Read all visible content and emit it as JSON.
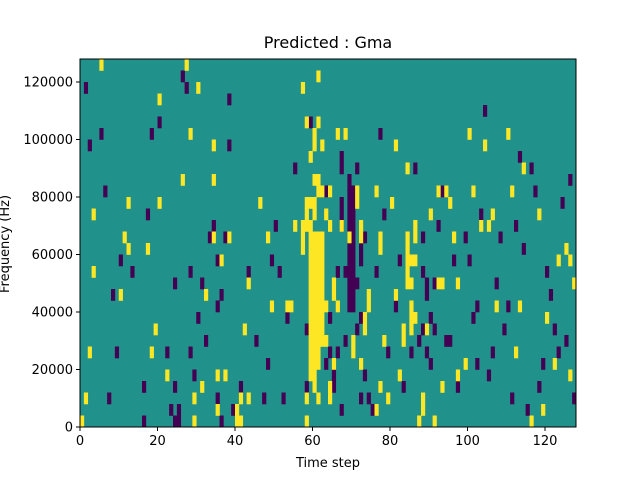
{
  "chart_data": {
    "type": "heatmap",
    "title": "Predicted : Gma",
    "xlabel": "Time step",
    "ylabel": "Frequency (Hz)",
    "xlim": [
      0,
      128
    ],
    "ylim": [
      0,
      128000
    ],
    "xticks": [
      0,
      20,
      40,
      60,
      80,
      100,
      120
    ],
    "xtick_labels": [
      "0",
      "20",
      "40",
      "60",
      "80",
      "100",
      "120"
    ],
    "yticks": [
      0,
      20000,
      40000,
      60000,
      80000,
      100000,
      120000
    ],
    "ytick_labels": [
      "0",
      "20000",
      "40000",
      "60000",
      "80000",
      "100000",
      "120000"
    ],
    "grid": false,
    "legend": false,
    "colormap": "viridis",
    "background_value": 0.5,
    "level_colors": {
      "0": "#440154",
      "0.5": "#21918c",
      "1": "#fde725"
    },
    "cell_size": {
      "time": 1,
      "frequency_hz": 4000
    },
    "cells_high": [
      [
        0,
        0
      ],
      [
        1,
        2
      ],
      [
        2,
        6
      ],
      [
        3,
        13
      ],
      [
        3,
        18
      ],
      [
        5,
        31
      ],
      [
        10,
        11
      ],
      [
        11,
        16
      ],
      [
        12,
        19
      ],
      [
        12,
        15
      ],
      [
        17,
        15
      ],
      [
        18,
        6
      ],
      [
        19,
        8
      ],
      [
        20,
        19
      ],
      [
        20,
        28
      ],
      [
        22,
        4
      ],
      [
        26,
        21
      ],
      [
        27,
        31
      ],
      [
        28,
        25
      ],
      [
        29,
        0
      ],
      [
        29,
        2
      ],
      [
        30,
        29
      ],
      [
        31,
        3
      ],
      [
        32,
        11
      ],
      [
        34,
        24
      ],
      [
        34,
        21
      ],
      [
        34,
        16
      ],
      [
        35,
        4
      ],
      [
        35,
        1
      ],
      [
        36,
        14
      ],
      [
        37,
        4
      ],
      [
        38,
        16
      ],
      [
        40,
        0
      ],
      [
        40,
        1
      ],
      [
        41,
        0
      ],
      [
        41,
        2
      ],
      [
        42,
        8
      ],
      [
        43,
        2
      ],
      [
        43,
        12
      ],
      [
        46,
        19
      ],
      [
        48,
        16
      ],
      [
        49,
        10
      ],
      [
        53,
        10
      ],
      [
        54,
        10
      ],
      [
        55,
        17
      ],
      [
        57,
        15
      ],
      [
        57,
        16
      ],
      [
        57,
        17
      ],
      [
        57,
        29
      ],
      [
        58,
        0
      ],
      [
        58,
        2
      ],
      [
        58,
        17
      ],
      [
        58,
        18
      ],
      [
        58,
        19
      ],
      [
        58,
        26
      ],
      [
        59,
        4
      ],
      [
        59,
        5
      ],
      [
        59,
        6
      ],
      [
        59,
        7
      ],
      [
        59,
        8
      ],
      [
        59,
        9
      ],
      [
        59,
        10
      ],
      [
        59,
        11
      ],
      [
        59,
        12
      ],
      [
        59,
        13
      ],
      [
        59,
        14
      ],
      [
        59,
        15
      ],
      [
        59,
        16
      ],
      [
        59,
        17
      ],
      [
        59,
        19
      ],
      [
        59,
        23
      ],
      [
        60,
        3
      ],
      [
        60,
        4
      ],
      [
        60,
        5
      ],
      [
        60,
        6
      ],
      [
        60,
        7
      ],
      [
        60,
        8
      ],
      [
        60,
        9
      ],
      [
        60,
        10
      ],
      [
        60,
        11
      ],
      [
        60,
        12
      ],
      [
        60,
        13
      ],
      [
        60,
        14
      ],
      [
        60,
        15
      ],
      [
        60,
        16
      ],
      [
        60,
        18
      ],
      [
        60,
        19
      ],
      [
        60,
        21
      ],
      [
        60,
        24
      ],
      [
        60,
        25
      ],
      [
        61,
        2
      ],
      [
        61,
        5
      ],
      [
        61,
        6
      ],
      [
        61,
        7
      ],
      [
        61,
        8
      ],
      [
        61,
        9
      ],
      [
        61,
        10
      ],
      [
        61,
        11
      ],
      [
        61,
        12
      ],
      [
        61,
        13
      ],
      [
        61,
        14
      ],
      [
        61,
        15
      ],
      [
        61,
        16
      ],
      [
        61,
        20
      ],
      [
        61,
        21
      ],
      [
        61,
        26
      ],
      [
        61,
        30
      ],
      [
        62,
        7
      ],
      [
        62,
        8
      ],
      [
        62,
        9
      ],
      [
        62,
        10
      ],
      [
        62,
        11
      ],
      [
        62,
        12
      ],
      [
        62,
        13
      ],
      [
        62,
        14
      ],
      [
        62,
        15
      ],
      [
        62,
        16
      ],
      [
        62,
        20
      ],
      [
        62,
        24
      ],
      [
        63,
        7
      ],
      [
        63,
        10
      ],
      [
        63,
        18
      ],
      [
        64,
        2
      ],
      [
        64,
        3
      ],
      [
        64,
        17
      ],
      [
        64,
        20
      ],
      [
        65,
        5
      ],
      [
        65,
        11
      ],
      [
        65,
        12
      ],
      [
        66,
        10
      ],
      [
        66,
        25
      ],
      [
        67,
        17
      ],
      [
        68,
        25
      ],
      [
        69,
        16
      ],
      [
        70,
        6
      ],
      [
        70,
        7
      ],
      [
        71,
        19
      ],
      [
        71,
        20
      ],
      [
        72,
        17
      ],
      [
        72,
        16
      ],
      [
        72,
        5
      ],
      [
        73,
        8
      ],
      [
        73,
        9
      ],
      [
        74,
        10
      ],
      [
        74,
        11
      ],
      [
        76,
        1
      ],
      [
        76,
        20
      ],
      [
        77,
        3
      ],
      [
        77,
        15
      ],
      [
        77,
        16
      ],
      [
        78,
        7
      ],
      [
        79,
        2
      ],
      [
        80,
        19
      ],
      [
        81,
        11
      ],
      [
        81,
        24
      ],
      [
        82,
        4
      ],
      [
        83,
        7
      ],
      [
        83,
        8
      ],
      [
        84,
        12
      ],
      [
        84,
        13
      ],
      [
        84,
        14
      ],
      [
        84,
        15
      ],
      [
        84,
        16
      ],
      [
        84,
        22
      ],
      [
        85,
        8
      ],
      [
        85,
        9
      ],
      [
        85,
        10
      ],
      [
        85,
        12
      ],
      [
        85,
        14
      ],
      [
        86,
        16
      ],
      [
        86,
        17
      ],
      [
        86,
        9
      ],
      [
        86,
        14
      ],
      [
        87,
        0
      ],
      [
        88,
        1
      ],
      [
        88,
        2
      ],
      [
        89,
        8
      ],
      [
        90,
        18
      ],
      [
        91,
        0
      ],
      [
        92,
        12
      ],
      [
        92,
        20
      ],
      [
        93,
        3
      ],
      [
        93,
        12
      ],
      [
        94,
        20
      ],
      [
        95,
        19
      ],
      [
        96,
        16
      ],
      [
        97,
        4
      ],
      [
        97,
        12
      ],
      [
        99,
        5
      ],
      [
        100,
        25
      ],
      [
        101,
        20
      ],
      [
        103,
        17
      ],
      [
        104,
        24
      ],
      [
        105,
        17
      ],
      [
        106,
        18
      ],
      [
        107,
        10
      ],
      [
        110,
        25
      ],
      [
        111,
        20
      ],
      [
        112,
        6
      ],
      [
        113,
        10
      ],
      [
        114,
        22
      ],
      [
        116,
        0
      ],
      [
        118,
        18
      ],
      [
        119,
        1
      ],
      [
        120,
        9
      ],
      [
        122,
        5
      ],
      [
        123,
        14
      ],
      [
        125,
        15
      ],
      [
        126,
        14
      ],
      [
        126,
        4
      ],
      [
        127,
        12
      ]
    ],
    "cells_low": [
      [
        1,
        29
      ],
      [
        2,
        24
      ],
      [
        5,
        25
      ],
      [
        6,
        20
      ],
      [
        7,
        2
      ],
      [
        8,
        11
      ],
      [
        9,
        6
      ],
      [
        10,
        14
      ],
      [
        13,
        13
      ],
      [
        16,
        3
      ],
      [
        16,
        0
      ],
      [
        17,
        18
      ],
      [
        18,
        25
      ],
      [
        20,
        26
      ],
      [
        22,
        6
      ],
      [
        23,
        1
      ],
      [
        24,
        0
      ],
      [
        24,
        3
      ],
      [
        24,
        12
      ],
      [
        25,
        0
      ],
      [
        25,
        1
      ],
      [
        26,
        30
      ],
      [
        27,
        29
      ],
      [
        28,
        6
      ],
      [
        28,
        13
      ],
      [
        29,
        4
      ],
      [
        30,
        9
      ],
      [
        31,
        12
      ],
      [
        32,
        7
      ],
      [
        33,
        16
      ],
      [
        34,
        17
      ],
      [
        35,
        14
      ],
      [
        35,
        10
      ],
      [
        35,
        2
      ],
      [
        36,
        11
      ],
      [
        36,
        0
      ],
      [
        37,
        16
      ],
      [
        38,
        24
      ],
      [
        38,
        28
      ],
      [
        39,
        1
      ],
      [
        41,
        3
      ],
      [
        43,
        13
      ],
      [
        45,
        7
      ],
      [
        47,
        2
      ],
      [
        48,
        5
      ],
      [
        49,
        14
      ],
      [
        50,
        17
      ],
      [
        51,
        13
      ],
      [
        52,
        2
      ],
      [
        53,
        9
      ],
      [
        55,
        22
      ],
      [
        58,
        8
      ],
      [
        58,
        3
      ],
      [
        59,
        26
      ],
      [
        63,
        20
      ],
      [
        63,
        5
      ],
      [
        64,
        6
      ],
      [
        64,
        9
      ],
      [
        65,
        3
      ],
      [
        65,
        4
      ],
      [
        66,
        6
      ],
      [
        66,
        13
      ],
      [
        67,
        1
      ],
      [
        67,
        17
      ],
      [
        67,
        18
      ],
      [
        67,
        19
      ],
      [
        67,
        22
      ],
      [
        67,
        23
      ],
      [
        68,
        13
      ],
      [
        68,
        7
      ],
      [
        69,
        10
      ],
      [
        69,
        11
      ],
      [
        69,
        12
      ],
      [
        69,
        13
      ],
      [
        69,
        14
      ],
      [
        69,
        15
      ],
      [
        69,
        16
      ],
      [
        69,
        17
      ],
      [
        69,
        18
      ],
      [
        69,
        19
      ],
      [
        69,
        20
      ],
      [
        69,
        21
      ],
      [
        70,
        10
      ],
      [
        70,
        11
      ],
      [
        70,
        12
      ],
      [
        70,
        13
      ],
      [
        70,
        14
      ],
      [
        70,
        15
      ],
      [
        70,
        16
      ],
      [
        70,
        17
      ],
      [
        70,
        18
      ],
      [
        70,
        19
      ],
      [
        70,
        20
      ],
      [
        71,
        8
      ],
      [
        71,
        12
      ],
      [
        71,
        22
      ],
      [
        72,
        2
      ],
      [
        72,
        14
      ],
      [
        72,
        15
      ],
      [
        72,
        9
      ],
      [
        73,
        4
      ],
      [
        73,
        16
      ],
      [
        74,
        2
      ],
      [
        75,
        1
      ],
      [
        76,
        13
      ],
      [
        77,
        25
      ],
      [
        78,
        18
      ],
      [
        79,
        6
      ],
      [
        81,
        10
      ],
      [
        82,
        14
      ],
      [
        83,
        3
      ],
      [
        85,
        6
      ],
      [
        86,
        22
      ],
      [
        87,
        7
      ],
      [
        88,
        8
      ],
      [
        88,
        13
      ],
      [
        88,
        16
      ],
      [
        89,
        6
      ],
      [
        89,
        11
      ],
      [
        89,
        12
      ],
      [
        90,
        5
      ],
      [
        90,
        9
      ],
      [
        91,
        8
      ],
      [
        91,
        12
      ],
      [
        92,
        17
      ],
      [
        93,
        20
      ],
      [
        94,
        7
      ],
      [
        95,
        7
      ],
      [
        96,
        14
      ],
      [
        97,
        3
      ],
      [
        99,
        16
      ],
      [
        100,
        14
      ],
      [
        101,
        9
      ],
      [
        102,
        5
      ],
      [
        102,
        10
      ],
      [
        103,
        18
      ],
      [
        104,
        27
      ],
      [
        105,
        4
      ],
      [
        106,
        6
      ],
      [
        107,
        12
      ],
      [
        108,
        16
      ],
      [
        109,
        8
      ],
      [
        110,
        10
      ],
      [
        111,
        2
      ],
      [
        112,
        17
      ],
      [
        113,
        23
      ],
      [
        114,
        15
      ],
      [
        115,
        1
      ],
      [
        116,
        22
      ],
      [
        117,
        20
      ],
      [
        118,
        3
      ],
      [
        119,
        5
      ],
      [
        120,
        13
      ],
      [
        121,
        11
      ],
      [
        122,
        8
      ],
      [
        123,
        6
      ],
      [
        124,
        19
      ],
      [
        125,
        7
      ],
      [
        126,
        21
      ],
      [
        127,
        2
      ]
    ]
  }
}
